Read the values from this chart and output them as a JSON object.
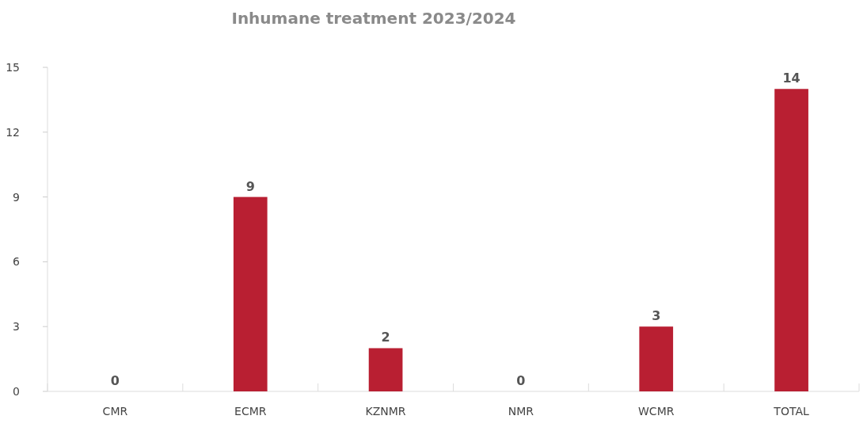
{
  "chart_data": {
    "type": "bar",
    "title": "Inhumane treatment 2023/2024",
    "categories": [
      "CMR",
      "ECMR",
      "KZNMR",
      "NMR",
      "WCMR",
      "TOTAL"
    ],
    "values": [
      0,
      9,
      2,
      0,
      3,
      14
    ],
    "color": "#b91f32",
    "ylim": [
      0,
      15
    ],
    "yticks": [
      0,
      3,
      6,
      9,
      12,
      15
    ],
    "grid": false,
    "data_labels": true
  }
}
